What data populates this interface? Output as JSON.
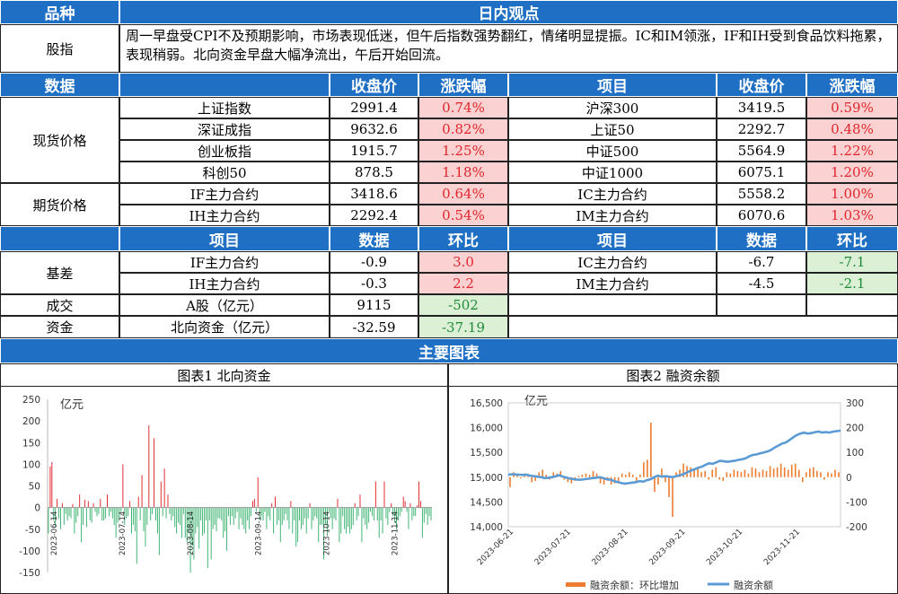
{
  "header": {
    "col1": "品种",
    "col2": "日内观点"
  },
  "view": {
    "label": "股指",
    "text": "周一早盘受CPI不及预期影响，市场表现低迷，但午后指数强势翻红，情绪明显提振。IC和IM领涨，IF和IH受到食品饮料拖累，表现稍弱。北向资金早盘大幅净流出，午后开始回流。"
  },
  "price_header": {
    "c1": "数据",
    "c2": "",
    "c3": "收盘价",
    "c4": "涨跌幅",
    "c5": "项目",
    "c6": "收盘价",
    "c7": "涨跌幅"
  },
  "spot": {
    "label": "现货价格",
    "rows": [
      {
        "name": "上证指数",
        "close": "2991.4",
        "chg": "0.74%",
        "name2": "沪深300",
        "close2": "3419.5",
        "chg2": "0.59%"
      },
      {
        "name": "深证成指",
        "close": "9632.6",
        "chg": "0.82%",
        "name2": "上证50",
        "close2": "2292.7",
        "chg2": "0.48%"
      },
      {
        "name": "创业板指",
        "close": "1915.7",
        "chg": "1.25%",
        "name2": "中证500",
        "close2": "5564.9",
        "chg2": "1.22%"
      },
      {
        "name": "科创50",
        "close": "878.5",
        "chg": "1.18%",
        "name2": "中证1000",
        "close2": "6075.1",
        "chg2": "1.20%"
      }
    ]
  },
  "futures": {
    "label": "期货价格",
    "rows": [
      {
        "name": "IF主力合约",
        "close": "3418.6",
        "chg": "0.64%",
        "name2": "IC主力合约",
        "close2": "5558.2",
        "chg2": "1.00%"
      },
      {
        "name": "IH主力合约",
        "close": "2292.4",
        "chg": "0.54%",
        "name2": "IM主力合约",
        "close2": "6070.6",
        "chg2": "1.03%"
      }
    ]
  },
  "basis_header": {
    "c1": "",
    "c2": "项目",
    "c3": "数据",
    "c4": "环比",
    "c5": "项目",
    "c6": "数据",
    "c7": "环比"
  },
  "basis": {
    "label": "基差",
    "rows": [
      {
        "name": "IF主力合约",
        "val": "-0.9",
        "chg": "3.0",
        "name2": "IC主力合约",
        "val2": "-6.7",
        "chg2": "-7.1"
      },
      {
        "name": "IH主力合约",
        "val": "-0.3",
        "chg": "2.2",
        "name2": "IM主力合约",
        "val2": "-4.5",
        "chg2": "-2.1"
      }
    ]
  },
  "volume": {
    "label": "成交",
    "name": "A股（亿元）",
    "val": "9115",
    "chg": "-502"
  },
  "capital": {
    "label": "资金",
    "name": "北向资金（亿元）",
    "val": "-32.59",
    "chg": "-37.19"
  },
  "main_charts_title": "主要图表",
  "chart1_title": "图表1  北向资金",
  "chart2_title": "图表2  融资余额",
  "colors": {
    "header_bg": "#1f6fc5",
    "up": "#e0262d",
    "down": "#1f8b3a",
    "line": "#5b9bd5",
    "bar2": "#ed7d31"
  },
  "chart_data": [
    {
      "type": "bar",
      "title": "图表1  北向资金",
      "ylabel": "亿元",
      "ylim": [
        -150,
        250
      ],
      "yticks": [
        -150,
        -100,
        -50,
        0,
        50,
        100,
        150,
        200,
        250
      ],
      "xticks": [
        "2023-06-14",
        "2023-07-14",
        "2023-08-14",
        "2023-09-14",
        "2023-10-14",
        "2023-11-14"
      ],
      "values": [
        -60,
        95,
        105,
        -30,
        -45,
        20,
        -25,
        -50,
        10,
        -40,
        -15,
        -30,
        -20,
        -25,
        8,
        -60,
        -35,
        -20,
        30,
        -80,
        -40,
        18,
        -45,
        15,
        -30,
        -35,
        10,
        -10,
        -20,
        -15,
        20,
        -30,
        -30,
        -25,
        30,
        -20,
        -10,
        -25,
        -40,
        -70,
        -35,
        -30,
        -10,
        100,
        -40,
        -25,
        -20,
        15,
        -60,
        -40,
        -55,
        -130,
        25,
        -30,
        75,
        -55,
        -90,
        -40,
        190,
        -30,
        -15,
        160,
        -30,
        -60,
        -110,
        60,
        -20,
        90,
        -25,
        30,
        -15,
        -30,
        -20,
        -45,
        -60,
        -35,
        -40,
        -70,
        -15,
        -70,
        -80,
        -60,
        -150,
        -85,
        -120,
        -60,
        -45,
        -95,
        -30,
        -65,
        -60,
        -30,
        -140,
        -30,
        -120,
        -50,
        -40,
        -55,
        -25,
        -25,
        -30,
        -70,
        -55,
        -100,
        -20,
        -40,
        -20,
        -40,
        -25,
        -10,
        -50,
        -25,
        -40,
        -50,
        -60,
        -30,
        -50,
        -20,
        15,
        20,
        -10,
        70,
        -30,
        -20,
        -30,
        -10,
        -50,
        -20,
        -30,
        10,
        -60,
        25,
        -40,
        -30,
        -80,
        -40,
        -30,
        -15,
        -30,
        -50,
        15,
        -60,
        -30,
        -90,
        -80,
        -30,
        -50,
        -40,
        -25,
        -60,
        -25,
        10,
        -50,
        -30,
        -20,
        -25,
        -80,
        -40,
        -40,
        -120,
        -40,
        -60,
        -10,
        -25,
        -50,
        -25,
        -30,
        20,
        -80,
        -60,
        -20,
        -50,
        -60,
        -45,
        -60,
        -50,
        -40,
        10,
        -30,
        -20,
        30,
        -80,
        -25,
        -40,
        -50,
        -35,
        -10,
        -20,
        -30,
        60,
        -30,
        -70,
        -30,
        -60,
        60,
        -25,
        -40,
        -10,
        10,
        -20,
        -35,
        -50,
        -30,
        -20,
        -10,
        25,
        15,
        -10,
        -50,
        10,
        -30,
        -20,
        -20,
        5,
        60,
        15,
        -70,
        -35,
        -15,
        -40,
        -20,
        -30
      ]
    },
    {
      "type": "line",
      "title": "图表2  融资余额",
      "ylabel": "亿元",
      "ylim": [
        14000,
        16500
      ],
      "yticks": [
        14000,
        14500,
        15000,
        15500,
        16000,
        16500
      ],
      "y2lim": [
        -200,
        300
      ],
      "y2ticks": [
        -200,
        -100,
        0,
        100,
        200,
        300
      ],
      "xticks": [
        "2023-06-21",
        "2023-07-21",
        "2023-08-21",
        "2023-09-21",
        "2023-10-21",
        "2023-11-21"
      ],
      "legend": [
        "融资余额：环比增加",
        "融资余额"
      ],
      "legend_position": "bottom",
      "line_values": [
        15050,
        15060,
        15055,
        15050,
        15045,
        15050,
        15030,
        15020,
        15010,
        15000,
        14980,
        14990,
        15000,
        15020,
        15040,
        15010,
        14990,
        14970,
        14960,
        14950,
        14950,
        14960,
        14970,
        14980,
        14990,
        15000,
        14980,
        14960,
        14950,
        14920,
        14900,
        14880,
        14870,
        14880,
        14890,
        14900,
        14920,
        14910,
        14940,
        14960,
        15000,
        15030,
        15010,
        15020,
        15010,
        15000,
        15020,
        15040,
        15060,
        15100,
        15130,
        15160,
        15190,
        15210,
        15250,
        15280,
        15270,
        15300,
        15330,
        15320,
        15310,
        15320,
        15330,
        15350,
        15360,
        15380,
        15420,
        15450,
        15460,
        15480,
        15500,
        15520,
        15550,
        15600,
        15640,
        15680,
        15700,
        15750,
        15800,
        15850,
        15880,
        15900,
        15880,
        15890,
        15910,
        15920,
        15900,
        15910,
        15900,
        15920,
        15930,
        15940
      ],
      "bar_values": [
        -40,
        20,
        10,
        -5,
        15,
        5,
        -20,
        -15,
        20,
        30,
        10,
        -10,
        20,
        15,
        25,
        -10,
        -20,
        -25,
        -15,
        5,
        10,
        15,
        10,
        25,
        15,
        -25,
        -30,
        -15,
        -30,
        -25,
        -20,
        15,
        10,
        20,
        10,
        -20,
        10,
        60,
        70,
        220,
        -60,
        -30,
        35,
        -20,
        -80,
        -160,
        20,
        30,
        55,
        45,
        40,
        35,
        40,
        20,
        25,
        -10,
        30,
        40,
        -10,
        -15,
        20,
        15,
        30,
        25,
        20,
        30,
        15,
        40,
        35,
        20,
        30,
        25,
        45,
        35,
        40,
        55,
        40,
        30,
        50,
        55,
        30,
        -20,
        20,
        35,
        40,
        25,
        20,
        -10,
        20,
        15,
        30,
        20
      ]
    }
  ]
}
